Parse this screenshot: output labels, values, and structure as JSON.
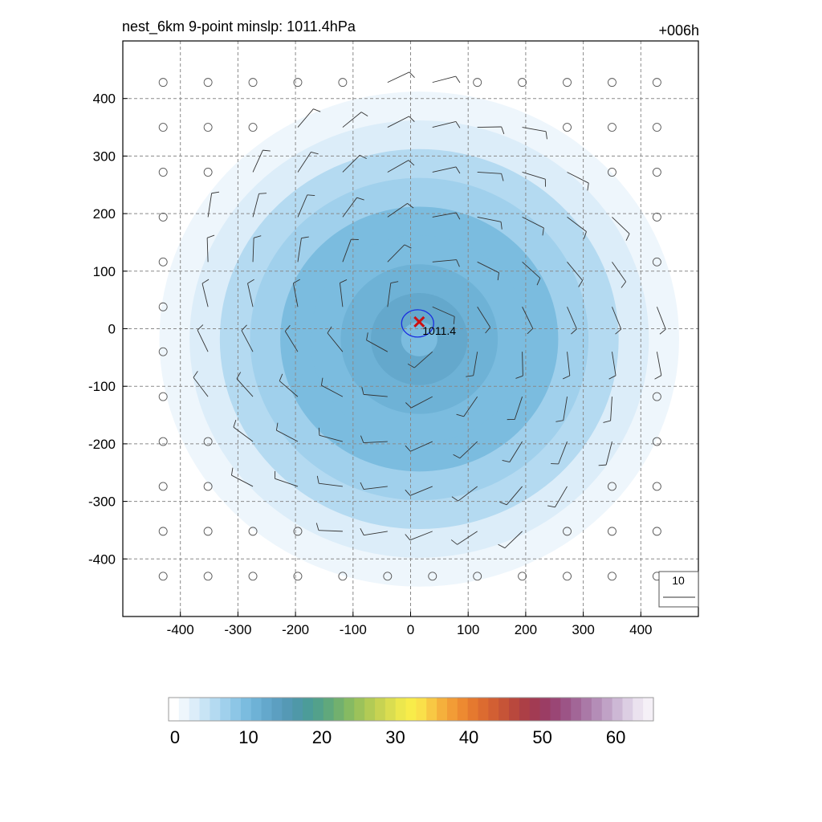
{
  "chart_data": {
    "type": "heatmap",
    "title": "nest_6km  9-point minslp: 1011.4hPa",
    "time_label": "+006h",
    "xlim": [
      -500,
      500
    ],
    "ylim": [
      -500,
      500
    ],
    "x_ticks": [
      -400,
      -300,
      -200,
      -100,
      0,
      100,
      200,
      300,
      400
    ],
    "y_ticks": [
      400,
      300,
      200,
      100,
      0,
      -100,
      -200,
      -300,
      -400
    ],
    "grid": true,
    "center": {
      "x": 15,
      "y": 12,
      "min_slp": "1011.4",
      "marker": "x",
      "marker_color": "#cc1111"
    },
    "contour_color": "#1a2ee0",
    "reference_vector_label": "10",
    "wind_field": {
      "outer_radius": 420,
      "calm_symbol": "circle",
      "grid_spacing": 78
    },
    "shading": {
      "field": "wind speed",
      "levels": [
        {
          "r": 430,
          "value": 2
        },
        {
          "r": 380,
          "value": 4
        },
        {
          "r": 330,
          "value": 6
        },
        {
          "r": 280,
          "value": 8
        },
        {
          "r": 230,
          "value": 10
        },
        {
          "r": 180,
          "value": 11
        },
        {
          "r": 130,
          "value": 12
        },
        {
          "r": 80,
          "value": 13
        },
        {
          "r": 30,
          "value": 10
        }
      ]
    },
    "colorbar": {
      "min": 0,
      "max": 66,
      "tick_values": [
        0,
        10,
        20,
        30,
        40,
        50,
        60
      ],
      "tick_labels": [
        "0",
        "10",
        "20",
        "30",
        "40",
        "50",
        "60"
      ],
      "colors": [
        "#ffffff",
        "#eef6fc",
        "#dcedf9",
        "#c8e4f5",
        "#b4daf1",
        "#a0d0ec",
        "#8dc6e6",
        "#7bbcdf",
        "#6eb2d6",
        "#64a8cc",
        "#5c9fc1",
        "#5599b5",
        "#4f98a8",
        "#4c9c99",
        "#53a18b",
        "#60a87c",
        "#72b06e",
        "#86ba62",
        "#9cc25a",
        "#b2cb55",
        "#c7d352",
        "#dadd50",
        "#ece74d",
        "#f8ec4a",
        "#fae04a",
        "#f8c844",
        "#f5b03c",
        "#f29c36",
        "#ed8a31",
        "#e5792f",
        "#dc6b30",
        "#d25f33",
        "#c65437",
        "#b9483d",
        "#ac3f46",
        "#a23b53",
        "#9b3d64",
        "#9a4675",
        "#9c5486",
        "#a26697",
        "#aa79a7",
        "#b48db7",
        "#c0a2c6",
        "#cdb8d5",
        "#dccee3",
        "#ebe2ef",
        "#f5f0f7"
      ]
    }
  }
}
